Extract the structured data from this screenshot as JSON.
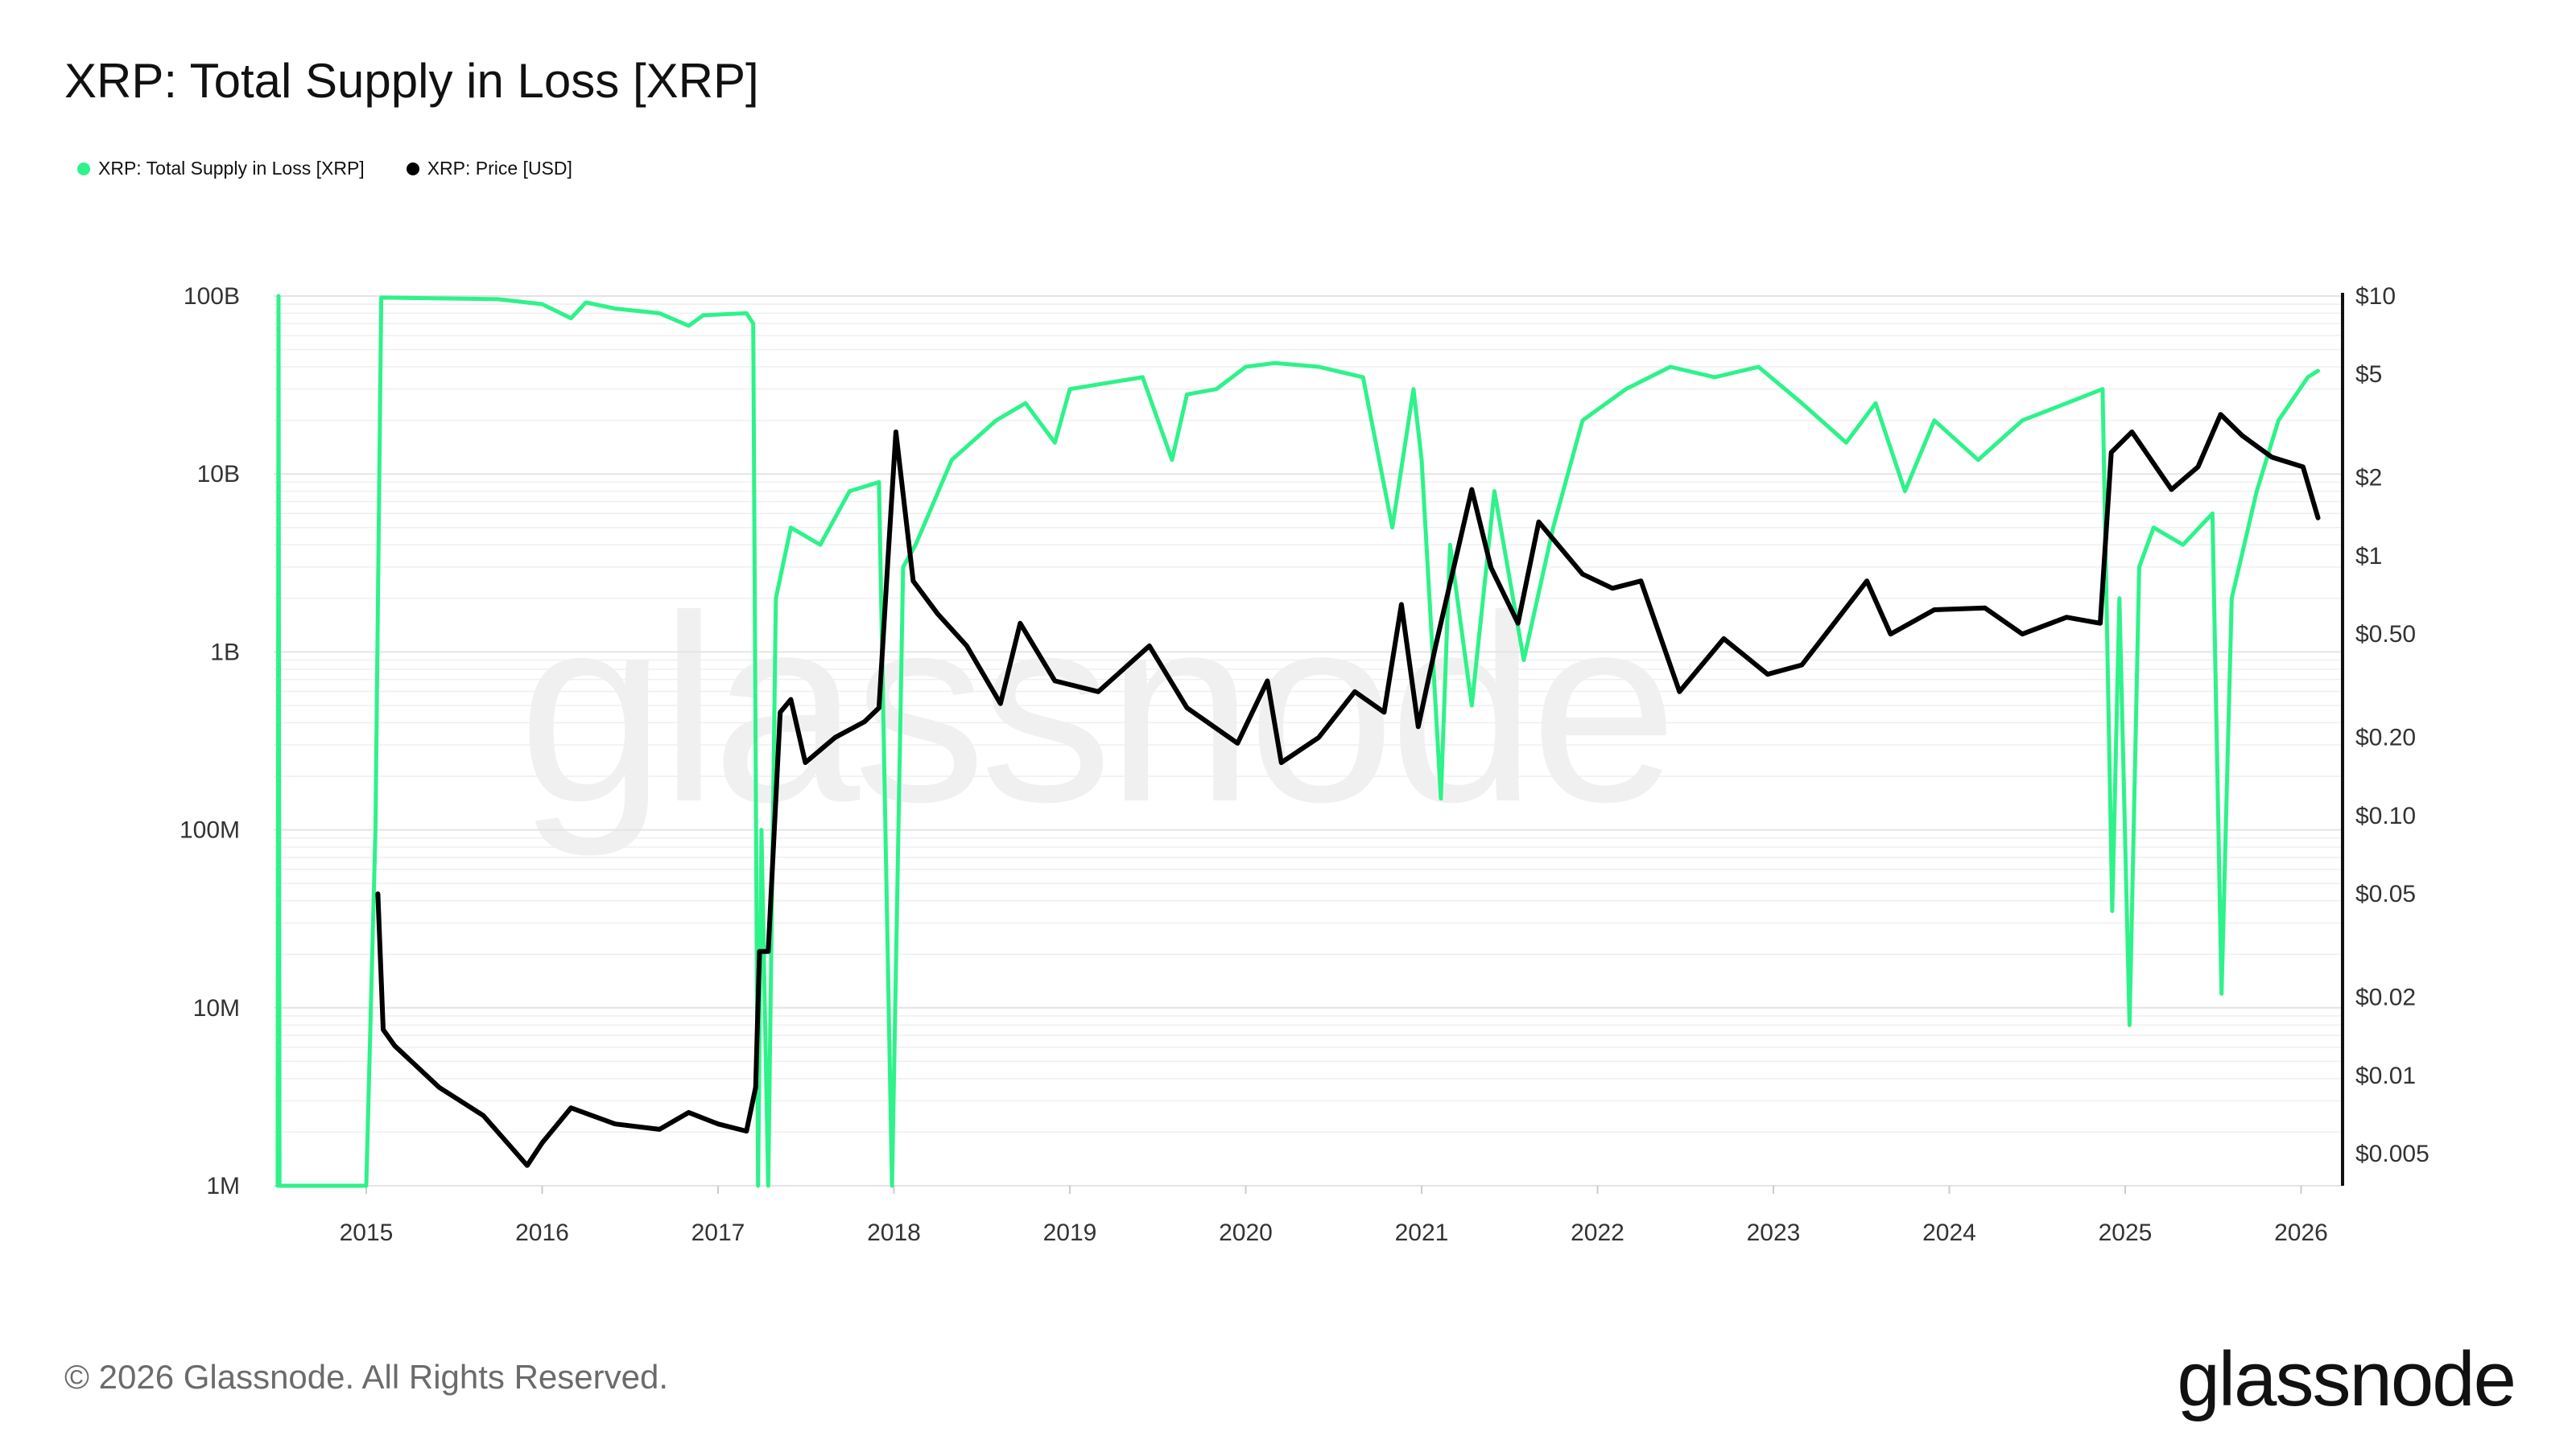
{
  "header": {
    "title": "XRP: Total Supply in Loss [XRP]"
  },
  "legend": {
    "items": [
      {
        "label": "XRP: Total Supply in Loss [XRP]",
        "color": "#2ef28a"
      },
      {
        "label": "XRP: Price [USD]",
        "color": "#000000"
      }
    ]
  },
  "footer": {
    "copyright": "© 2026 Glassnode. All Rights Reserved.",
    "brand": "glassnode",
    "watermark": "glassnode"
  },
  "chart_data": {
    "type": "line",
    "title": "XRP: Total Supply in Loss [XRP]",
    "xlabel": "",
    "ylabel": "",
    "grid": true,
    "legend_position": "top-left",
    "x_ticks": [
      "2015",
      "2016",
      "2017",
      "2018",
      "2019",
      "2020",
      "2021",
      "2022",
      "2023",
      "2024",
      "2025",
      "2026"
    ],
    "y_left": {
      "scale": "log",
      "range": [
        1000000,
        100000000000
      ],
      "tick_values": [
        1000000,
        10000000,
        100000000,
        1000000000,
        10000000000,
        100000000000
      ],
      "tick_labels": [
        "1M",
        "10M",
        "100M",
        "1B",
        "10B",
        "100B"
      ]
    },
    "y_right": {
      "scale": "log",
      "range": [
        0.00376,
        10
      ],
      "tick_values": [
        0.005,
        0.01,
        0.02,
        0.05,
        0.1,
        0.2,
        0.5,
        1,
        2,
        5,
        10
      ],
      "tick_labels": [
        "$0.005",
        "$0.01",
        "$0.02",
        "$0.05",
        "$0.10",
        "$0.20",
        "$0.50",
        "$1",
        "$2",
        "$5",
        "$10"
      ]
    },
    "series": [
      {
        "name": "XRP: Total Supply in Loss [XRP]",
        "axis": "left",
        "color": "#2ef28a",
        "points": [
          [
            "2014-07-01",
            1000000
          ],
          [
            "2014-07-03",
            100000000000
          ],
          [
            "2014-07-05",
            1000000
          ],
          [
            "2015-01-01",
            1000000
          ],
          [
            "2015-01-20",
            100000000
          ],
          [
            "2015-02-01",
            98000000000
          ],
          [
            "2015-06-01",
            97000000000
          ],
          [
            "2015-10-01",
            96000000000
          ],
          [
            "2016-01-01",
            90000000000
          ],
          [
            "2016-03-01",
            75000000000
          ],
          [
            "2016-04-01",
            92000000000
          ],
          [
            "2016-06-01",
            85000000000
          ],
          [
            "2016-09-01",
            80000000000
          ],
          [
            "2016-11-01",
            68000000000
          ],
          [
            "2016-12-01",
            78000000000
          ],
          [
            "2017-03-01",
            80000000000
          ],
          [
            "2017-03-15",
            70000000000
          ],
          [
            "2017-03-25",
            1000000
          ],
          [
            "2017-04-01",
            100000000
          ],
          [
            "2017-04-15",
            1000000
          ],
          [
            "2017-05-01",
            2000000000
          ],
          [
            "2017-06-01",
            5000000000
          ],
          [
            "2017-08-01",
            4000000000
          ],
          [
            "2017-10-01",
            8000000000
          ],
          [
            "2017-12-01",
            9000000000
          ],
          [
            "2017-12-28",
            1000000
          ],
          [
            "2018-01-20",
            3000000000
          ],
          [
            "2018-02-15",
            4000000000
          ],
          [
            "2018-05-01",
            12000000000
          ],
          [
            "2018-08-01",
            20000000000
          ],
          [
            "2018-10-01",
            25000000000
          ],
          [
            "2018-12-01",
            15000000000
          ],
          [
            "2019-01-01",
            30000000000
          ],
          [
            "2019-06-01",
            35000000000
          ],
          [
            "2019-08-01",
            12000000000
          ],
          [
            "2019-09-01",
            28000000000
          ],
          [
            "2019-11-01",
            30000000000
          ],
          [
            "2020-01-01",
            40000000000
          ],
          [
            "2020-03-01",
            42000000000
          ],
          [
            "2020-06-01",
            40000000000
          ],
          [
            "2020-09-01",
            35000000000
          ],
          [
            "2020-11-01",
            5000000000
          ],
          [
            "2020-12-15",
            30000000000
          ],
          [
            "2021-01-01",
            12000000000
          ],
          [
            "2021-02-10",
            150000000
          ],
          [
            "2021-03-01",
            4000000000
          ],
          [
            "2021-04-15",
            500000000
          ],
          [
            "2021-06-01",
            8000000000
          ],
          [
            "2021-08-01",
            900000000
          ],
          [
            "2021-10-01",
            5000000000
          ],
          [
            "2021-12-01",
            20000000000
          ],
          [
            "2022-03-01",
            30000000000
          ],
          [
            "2022-06-01",
            40000000000
          ],
          [
            "2022-09-01",
            35000000000
          ],
          [
            "2022-12-01",
            40000000000
          ],
          [
            "2023-03-01",
            25000000000
          ],
          [
            "2023-06-01",
            15000000000
          ],
          [
            "2023-08-01",
            25000000000
          ],
          [
            "2023-10-01",
            8000000000
          ],
          [
            "2023-12-01",
            20000000000
          ],
          [
            "2024-03-01",
            12000000000
          ],
          [
            "2024-06-01",
            20000000000
          ],
          [
            "2024-09-01",
            25000000000
          ],
          [
            "2024-11-15",
            30000000000
          ],
          [
            "2024-12-05",
            35000000
          ],
          [
            "2024-12-20",
            2000000000
          ],
          [
            "2025-01-10",
            8000000
          ],
          [
            "2025-01-30",
            3000000000
          ],
          [
            "2025-03-01",
            5000000000
          ],
          [
            "2025-05-01",
            4000000000
          ],
          [
            "2025-07-01",
            6000000000
          ],
          [
            "2025-07-20",
            12000000
          ],
          [
            "2025-08-10",
            2000000000
          ],
          [
            "2025-10-01",
            8000000000
          ],
          [
            "2025-11-15",
            20000000000
          ],
          [
            "2026-01-15",
            35000000000
          ],
          [
            "2026-02-05",
            38000000000
          ]
        ]
      },
      {
        "name": "XRP: Price [USD]",
        "axis": "right",
        "color": "#000000",
        "points": [
          [
            "2015-01-25",
            0.05
          ],
          [
            "2015-02-05",
            0.015
          ],
          [
            "2015-03-01",
            0.013
          ],
          [
            "2015-06-01",
            0.009
          ],
          [
            "2015-09-01",
            0.007
          ],
          [
            "2015-12-01",
            0.0045
          ],
          [
            "2016-01-01",
            0.0055
          ],
          [
            "2016-03-01",
            0.0075
          ],
          [
            "2016-06-01",
            0.0065
          ],
          [
            "2016-09-01",
            0.0062
          ],
          [
            "2016-11-01",
            0.0072
          ],
          [
            "2017-01-01",
            0.0065
          ],
          [
            "2017-03-01",
            0.0061
          ],
          [
            "2017-03-20",
            0.009
          ],
          [
            "2017-03-28",
            0.03
          ],
          [
            "2017-04-15",
            0.03
          ],
          [
            "2017-05-10",
            0.25
          ],
          [
            "2017-06-01",
            0.28
          ],
          [
            "2017-07-01",
            0.16
          ],
          [
            "2017-09-01",
            0.2
          ],
          [
            "2017-11-01",
            0.23
          ],
          [
            "2017-12-01",
            0.26
          ],
          [
            "2017-12-20",
            1.0
          ],
          [
            "2018-01-05",
            3.0
          ],
          [
            "2018-02-10",
            0.8
          ],
          [
            "2018-04-01",
            0.6
          ],
          [
            "2018-06-01",
            0.45
          ],
          [
            "2018-08-10",
            0.27
          ],
          [
            "2018-09-20",
            0.55
          ],
          [
            "2018-12-01",
            0.33
          ],
          [
            "2019-03-01",
            0.3
          ],
          [
            "2019-06-15",
            0.45
          ],
          [
            "2019-09-01",
            0.26
          ],
          [
            "2019-12-15",
            0.19
          ],
          [
            "2020-02-15",
            0.33
          ],
          [
            "2020-03-15",
            0.16
          ],
          [
            "2020-06-01",
            0.2
          ],
          [
            "2020-08-15",
            0.3
          ],
          [
            "2020-10-15",
            0.25
          ],
          [
            "2020-11-20",
            0.65
          ],
          [
            "2020-12-25",
            0.22
          ],
          [
            "2021-01-30",
            0.45
          ],
          [
            "2021-04-15",
            1.8
          ],
          [
            "2021-05-25",
            0.9
          ],
          [
            "2021-07-20",
            0.55
          ],
          [
            "2021-09-01",
            1.35
          ],
          [
            "2021-12-01",
            0.85
          ],
          [
            "2022-02-01",
            0.75
          ],
          [
            "2022-04-01",
            0.8
          ],
          [
            "2022-06-20",
            0.3
          ],
          [
            "2022-09-20",
            0.48
          ],
          [
            "2022-12-20",
            0.35
          ],
          [
            "2023-03-01",
            0.38
          ],
          [
            "2023-07-14",
            0.8
          ],
          [
            "2023-09-01",
            0.5
          ],
          [
            "2023-12-01",
            0.62
          ],
          [
            "2024-03-15",
            0.63
          ],
          [
            "2024-06-01",
            0.5
          ],
          [
            "2024-09-01",
            0.58
          ],
          [
            "2024-11-10",
            0.55
          ],
          [
            "2024-12-03",
            2.5
          ],
          [
            "2025-01-15",
            3.0
          ],
          [
            "2025-04-07",
            1.8
          ],
          [
            "2025-06-01",
            2.2
          ],
          [
            "2025-07-18",
            3.5
          ],
          [
            "2025-09-01",
            2.9
          ],
          [
            "2025-11-01",
            2.4
          ],
          [
            "2026-01-05",
            2.2
          ],
          [
            "2026-02-05",
            1.4
          ]
        ]
      }
    ]
  }
}
